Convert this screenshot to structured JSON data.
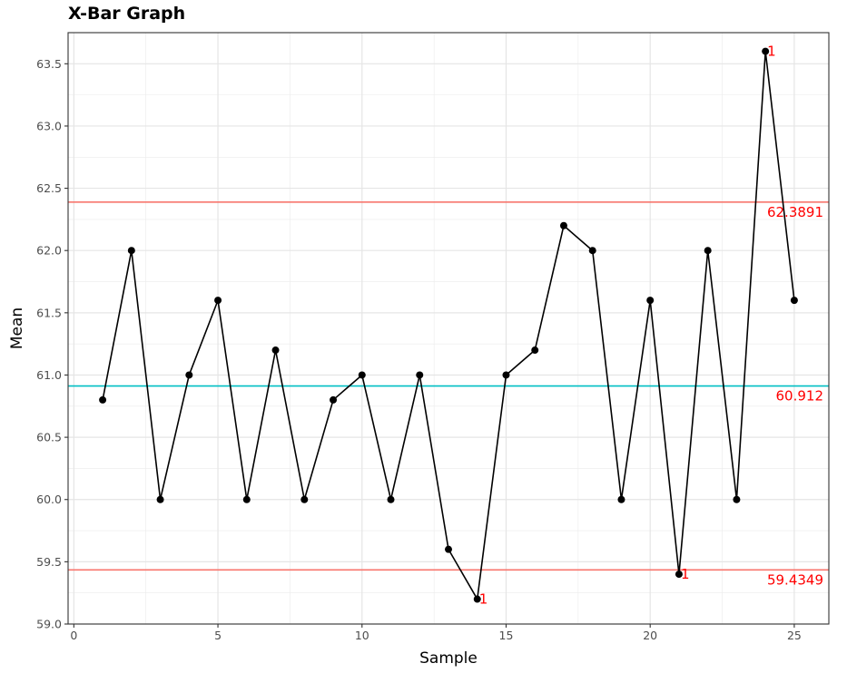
{
  "chart_data": {
    "type": "line",
    "title": "X-Bar Graph",
    "xlabel": "Sample",
    "ylabel": "Mean",
    "xlim": [
      -0.2,
      26.2
    ],
    "ylim": [
      59.0,
      63.75
    ],
    "xticks": [
      0,
      5,
      10,
      15,
      20,
      25
    ],
    "xtick_labels": [
      "0",
      "5",
      "10",
      "15",
      "20",
      "25"
    ],
    "yticks": [
      59.0,
      59.5,
      60.0,
      60.5,
      61.0,
      61.5,
      62.0,
      62.5,
      63.0,
      63.5
    ],
    "ytick_labels": [
      "59.0",
      "59.5",
      "60.0",
      "60.5",
      "61.0",
      "61.5",
      "62.0",
      "62.5",
      "63.0",
      "63.5"
    ],
    "grid": true,
    "series": [
      {
        "x": [
          1,
          2,
          3,
          4,
          5,
          6,
          7,
          8,
          9,
          10,
          11,
          12,
          13,
          14,
          15,
          16,
          17,
          18,
          19,
          20,
          21,
          22,
          23,
          24,
          25
        ],
        "values": [
          60.8,
          62.0,
          60.0,
          61.0,
          61.6,
          60.0,
          61.2,
          60.0,
          60.8,
          61.0,
          60.0,
          61.0,
          59.6,
          59.2,
          61.0,
          61.2,
          62.2,
          62.0,
          60.0,
          61.6,
          59.4,
          62.0,
          60.0,
          63.6,
          61.6
        ],
        "color": "#000000"
      }
    ],
    "reference_lines": [
      {
        "value": 62.3891,
        "label": "62.3891",
        "color": "#f8766d",
        "text_color": "#ff0000"
      },
      {
        "value": 60.912,
        "label": "60.912",
        "color": "#00bfc4",
        "text_color": "#ff0000"
      },
      {
        "value": 59.4349,
        "label": "59.4349",
        "color": "#f8766d",
        "text_color": "#ff0000"
      }
    ],
    "flagged_points": [
      {
        "x": 14,
        "y": 59.2,
        "label": "1"
      },
      {
        "x": 21,
        "y": 59.4,
        "label": "1"
      },
      {
        "x": 24,
        "y": 63.6,
        "label": "1"
      }
    ],
    "flag_color": "#ff0000"
  }
}
